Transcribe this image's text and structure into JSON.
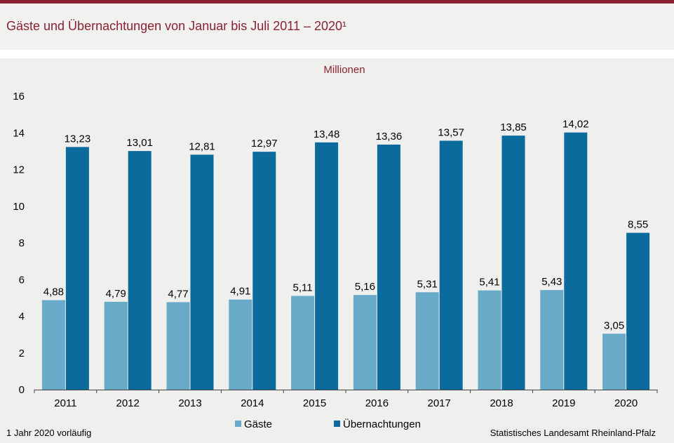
{
  "title": "Gäste und Übernachtungen von Januar bis Juli 2011 – 2020¹",
  "unit_label": "Millionen",
  "footnote": "1 Jahr 2020 vorläufig",
  "source": "Statistisches Landesamt Rheinland-Pfalz",
  "colors": {
    "accent": "#8a2232",
    "gaeste": "#6aaac9",
    "uebernachtungen": "#0b6b9d"
  },
  "chart_data": {
    "type": "bar",
    "categories": [
      "2011",
      "2012",
      "2013",
      "2014",
      "2015",
      "2016",
      "2017",
      "2018",
      "2019",
      "2020"
    ],
    "series": [
      {
        "name": "Gäste",
        "values": [
          4.88,
          4.79,
          4.77,
          4.91,
          5.11,
          5.16,
          5.31,
          5.41,
          5.43,
          3.05
        ],
        "labels": [
          "4,88",
          "4,79",
          "4,77",
          "4,91",
          "5,11",
          "5,16",
          "5,31",
          "5,41",
          "5,43",
          "3,05"
        ]
      },
      {
        "name": "Übernachtungen",
        "values": [
          13.23,
          13.01,
          12.81,
          12.97,
          13.48,
          13.36,
          13.57,
          13.85,
          14.02,
          8.55
        ],
        "labels": [
          "13,23",
          "13,01",
          "12,81",
          "12,97",
          "13,48",
          "13,36",
          "13,57",
          "13,85",
          "14,02",
          "8,55"
        ]
      }
    ],
    "ylim": [
      0,
      16
    ],
    "yticks": [
      "0",
      "2",
      "4",
      "6",
      "8",
      "10",
      "12",
      "14",
      "16"
    ],
    "grid": false,
    "legend_position": "bottom"
  }
}
